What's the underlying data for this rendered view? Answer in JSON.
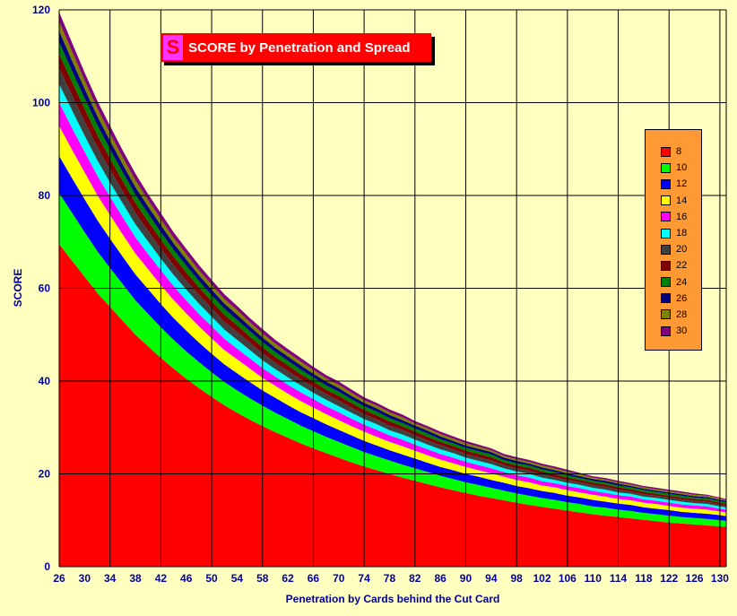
{
  "chart_data": {
    "type": "area",
    "title": "SCORE by Penetration and Spread",
    "xlabel": "Penetration by Cards behind the Cut Card",
    "ylabel": "SCORE",
    "ylim": [
      0,
      120
    ],
    "yticks": [
      0,
      20,
      40,
      60,
      80,
      100,
      120
    ],
    "xticks": [
      26,
      30,
      34,
      38,
      42,
      46,
      50,
      54,
      58,
      62,
      66,
      70,
      74,
      78,
      82,
      86,
      90,
      94,
      98,
      102,
      106,
      110,
      114,
      118,
      122,
      126,
      130
    ],
    "xlim": [
      26,
      131
    ],
    "stacked": true,
    "grid": true,
    "legend_position": "right",
    "x": [
      26,
      28,
      30,
      32,
      34,
      36,
      38,
      40,
      42,
      44,
      46,
      48,
      50,
      52,
      54,
      56,
      58,
      60,
      62,
      64,
      66,
      68,
      70,
      72,
      74,
      76,
      78,
      80,
      82,
      84,
      86,
      88,
      90,
      92,
      94,
      96,
      98,
      100,
      102,
      104,
      106,
      108,
      110,
      112,
      114,
      116,
      118,
      120,
      122,
      124,
      126,
      128,
      130,
      131
    ],
    "total": [
      119.5,
      112.0,
      105.5,
      99.5,
      94.0,
      88.5,
      83.5,
      79.0,
      75.0,
      71.0,
      67.5,
      64.0,
      61.0,
      58.0,
      55.5,
      53.0,
      50.6,
      48.5,
      46.4,
      44.4,
      42.6,
      40.9,
      39.3,
      37.8,
      36.3,
      34.9,
      33.6,
      32.4,
      31.2,
      30.1,
      29.0,
      28.0,
      27.0,
      26.1,
      25.2,
      24.3,
      23.5,
      22.8,
      22.1,
      21.4,
      20.8,
      20.2,
      19.6,
      19.1,
      18.6,
      18.1,
      17.6,
      17.2,
      16.8,
      16.4,
      16.0,
      15.6,
      15.2,
      15.0
    ],
    "series": [
      {
        "name": "8",
        "color": "#ff0000",
        "values": [
          69.5,
          66.0,
          62.5,
          59.0,
          56.0,
          53.0,
          50.0,
          47.5,
          45.0,
          42.7,
          40.5,
          38.5,
          36.6,
          34.8,
          33.2,
          31.7,
          30.3,
          29.0,
          27.8,
          26.6,
          25.5,
          24.5,
          23.5,
          22.5,
          21.6,
          20.8,
          20.0,
          19.2,
          18.5,
          17.8,
          17.1,
          16.5,
          15.9,
          15.3,
          14.8,
          14.3,
          13.8,
          13.3,
          12.9,
          12.5,
          12.1,
          11.7,
          11.3,
          11.0,
          10.7,
          10.4,
          10.1,
          9.8,
          9.5,
          9.3,
          9.1,
          8.9,
          8.7,
          8.6
        ]
      },
      {
        "name": "10",
        "color": "#00ff00",
        "values": [
          11.0,
          10.3,
          9.6,
          9.0,
          8.4,
          7.9,
          7.4,
          7.0,
          6.6,
          6.2,
          5.9,
          5.6,
          5.3,
          5.0,
          4.8,
          4.6,
          4.4,
          4.2,
          4.0,
          3.8,
          3.7,
          3.5,
          3.4,
          3.3,
          3.1,
          3.0,
          2.9,
          2.8,
          2.7,
          2.6,
          2.5,
          2.4,
          2.3,
          2.3,
          2.2,
          2.1,
          2.0,
          2.0,
          1.9,
          1.9,
          1.8,
          1.8,
          1.7,
          1.7,
          1.6,
          1.6,
          1.5,
          1.5,
          1.5,
          1.4,
          1.4,
          1.4,
          1.3,
          1.3
        ]
      },
      {
        "name": "12",
        "color": "#0000ff",
        "values": [
          8.0,
          7.5,
          7.1,
          6.7,
          6.3,
          5.9,
          5.6,
          5.3,
          5.0,
          4.7,
          4.5,
          4.2,
          4.0,
          3.8,
          3.7,
          3.5,
          3.3,
          3.2,
          3.0,
          2.9,
          2.8,
          2.7,
          2.6,
          2.5,
          2.4,
          2.3,
          2.2,
          2.2,
          2.1,
          2.0,
          1.9,
          1.9,
          1.8,
          1.8,
          1.7,
          1.7,
          1.6,
          1.6,
          1.5,
          1.5,
          1.4,
          1.4,
          1.4,
          1.3,
          1.3,
          1.3,
          1.2,
          1.2,
          1.2,
          1.1,
          1.1,
          1.1,
          1.1,
          1.0
        ]
      },
      {
        "name": "14",
        "color": "#ffff00",
        "values": [
          6.5,
          6.1,
          5.8,
          5.4,
          5.1,
          4.8,
          4.5,
          4.3,
          4.1,
          3.9,
          3.7,
          3.5,
          3.3,
          3.1,
          3.0,
          2.9,
          2.7,
          2.6,
          2.5,
          2.4,
          2.3,
          2.2,
          2.1,
          2.0,
          2.0,
          1.9,
          1.8,
          1.8,
          1.7,
          1.6,
          1.6,
          1.5,
          1.5,
          1.4,
          1.4,
          1.3,
          1.3,
          1.3,
          1.2,
          1.2,
          1.2,
          1.1,
          1.1,
          1.1,
          1.0,
          1.0,
          1.0,
          1.0,
          0.9,
          0.9,
          0.9,
          0.9,
          0.8,
          0.8
        ]
      },
      {
        "name": "16",
        "color": "#ff00ff",
        "values": [
          5.0,
          4.7,
          4.4,
          4.2,
          3.9,
          3.7,
          3.5,
          3.3,
          3.2,
          3.0,
          2.8,
          2.7,
          2.6,
          2.4,
          2.3,
          2.2,
          2.1,
          2.0,
          1.9,
          1.9,
          1.8,
          1.7,
          1.7,
          1.6,
          1.5,
          1.5,
          1.4,
          1.4,
          1.3,
          1.3,
          1.2,
          1.2,
          1.1,
          1.1,
          1.1,
          1.0,
          1.0,
          1.0,
          0.9,
          0.9,
          0.9,
          0.9,
          0.8,
          0.8,
          0.8,
          0.8,
          0.7,
          0.7,
          0.7,
          0.7,
          0.7,
          0.7,
          0.6,
          0.6
        ]
      },
      {
        "name": "18",
        "color": "#00ffff",
        "values": [
          4.0,
          3.8,
          3.5,
          3.3,
          3.1,
          3.0,
          2.8,
          2.7,
          2.5,
          2.4,
          2.3,
          2.2,
          2.1,
          2.0,
          1.9,
          1.8,
          1.7,
          1.6,
          1.6,
          1.5,
          1.4,
          1.4,
          1.3,
          1.3,
          1.2,
          1.2,
          1.1,
          1.1,
          1.1,
          1.0,
          1.0,
          1.0,
          0.9,
          0.9,
          0.9,
          0.8,
          0.8,
          0.8,
          0.8,
          0.7,
          0.7,
          0.7,
          0.7,
          0.7,
          0.6,
          0.6,
          0.6,
          0.6,
          0.6,
          0.6,
          0.5,
          0.5,
          0.5,
          0.5
        ]
      },
      {
        "name": "20",
        "color": "#404040",
        "values": [
          3.5,
          3.3,
          3.1,
          2.9,
          2.8,
          2.6,
          2.5,
          2.3,
          2.2,
          2.1,
          2.0,
          1.9,
          1.8,
          1.7,
          1.7,
          1.6,
          1.5,
          1.4,
          1.4,
          1.3,
          1.3,
          1.2,
          1.2,
          1.1,
          1.1,
          1.0,
          1.0,
          1.0,
          0.9,
          0.9,
          0.9,
          0.8,
          0.8,
          0.8,
          0.8,
          0.7,
          0.7,
          0.7,
          0.7,
          0.6,
          0.6,
          0.6,
          0.6,
          0.6,
          0.6,
          0.5,
          0.5,
          0.5,
          0.5,
          0.5,
          0.5,
          0.5,
          0.4,
          0.4
        ]
      },
      {
        "name": "22",
        "color": "#800000",
        "values": [
          3.0,
          2.8,
          2.7,
          2.5,
          2.4,
          2.2,
          2.1,
          2.0,
          1.9,
          1.8,
          1.7,
          1.6,
          1.5,
          1.5,
          1.4,
          1.3,
          1.3,
          1.2,
          1.2,
          1.1,
          1.1,
          1.0,
          1.0,
          1.0,
          0.9,
          0.9,
          0.9,
          0.8,
          0.8,
          0.8,
          0.7,
          0.7,
          0.7,
          0.7,
          0.7,
          0.6,
          0.6,
          0.6,
          0.6,
          0.6,
          0.5,
          0.5,
          0.5,
          0.5,
          0.5,
          0.5,
          0.5,
          0.4,
          0.4,
          0.4,
          0.4,
          0.4,
          0.4,
          0.4
        ]
      },
      {
        "name": "24",
        "color": "#008000",
        "values": [
          2.6,
          2.4,
          2.3,
          2.2,
          2.0,
          1.9,
          1.8,
          1.7,
          1.6,
          1.5,
          1.5,
          1.4,
          1.3,
          1.3,
          1.2,
          1.2,
          1.1,
          1.1,
          1.0,
          1.0,
          0.9,
          0.9,
          0.9,
          0.8,
          0.8,
          0.8,
          0.7,
          0.7,
          0.7,
          0.7,
          0.6,
          0.6,
          0.6,
          0.6,
          0.6,
          0.5,
          0.5,
          0.5,
          0.5,
          0.5,
          0.5,
          0.4,
          0.4,
          0.4,
          0.4,
          0.4,
          0.4,
          0.4,
          0.4,
          0.4,
          0.3,
          0.3,
          0.3,
          0.3
        ]
      },
      {
        "name": "26",
        "color": "#000080",
        "values": [
          2.3,
          2.2,
          2.0,
          1.9,
          1.8,
          1.7,
          1.6,
          1.5,
          1.5,
          1.4,
          1.3,
          1.2,
          1.2,
          1.1,
          1.1,
          1.0,
          1.0,
          0.9,
          0.9,
          0.9,
          0.8,
          0.8,
          0.8,
          0.7,
          0.7,
          0.7,
          0.7,
          0.6,
          0.6,
          0.6,
          0.6,
          0.5,
          0.5,
          0.5,
          0.5,
          0.5,
          0.5,
          0.4,
          0.4,
          0.4,
          0.4,
          0.4,
          0.4,
          0.4,
          0.4,
          0.3,
          0.3,
          0.3,
          0.3,
          0.3,
          0.3,
          0.3,
          0.3,
          0.3
        ]
      },
      {
        "name": "28",
        "color": "#808000",
        "values": [
          2.1,
          2.0,
          1.8,
          1.7,
          1.6,
          1.5,
          1.5,
          1.4,
          1.3,
          1.2,
          1.2,
          1.1,
          1.1,
          1.0,
          1.0,
          0.9,
          0.9,
          0.9,
          0.8,
          0.8,
          0.8,
          0.7,
          0.7,
          0.7,
          0.6,
          0.6,
          0.6,
          0.6,
          0.5,
          0.5,
          0.5,
          0.5,
          0.5,
          0.5,
          0.4,
          0.4,
          0.4,
          0.4,
          0.4,
          0.4,
          0.4,
          0.4,
          0.3,
          0.3,
          0.3,
          0.3,
          0.3,
          0.3,
          0.3,
          0.3,
          0.3,
          0.3,
          0.3,
          0.2
        ]
      },
      {
        "name": "30",
        "color": "#800080",
        "values": [
          2.0,
          1.9,
          1.7,
          1.6,
          1.6,
          1.5,
          1.4,
          1.3,
          1.3,
          1.2,
          1.1,
          1.1,
          1.0,
          1.0,
          0.9,
          0.9,
          0.9,
          0.8,
          0.8,
          0.8,
          0.7,
          0.7,
          0.7,
          0.7,
          0.6,
          0.6,
          0.6,
          0.6,
          0.5,
          0.5,
          0.5,
          0.5,
          0.5,
          0.4,
          0.4,
          0.4,
          0.4,
          0.4,
          0.4,
          0.4,
          0.4,
          0.3,
          0.3,
          0.3,
          0.3,
          0.3,
          0.3,
          0.3,
          0.3,
          0.3,
          0.3,
          0.2,
          0.2,
          0.2
        ]
      }
    ]
  },
  "title_icon_glyph": "S"
}
